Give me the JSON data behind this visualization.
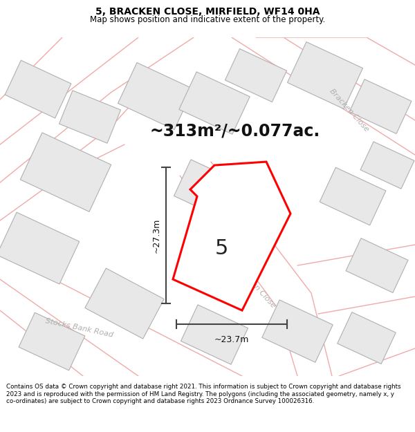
{
  "title": "5, BRACKEN CLOSE, MIRFIELD, WF14 0HA",
  "subtitle": "Map shows position and indicative extent of the property.",
  "area_text": "~313m²/~0.077ac.",
  "width_text": "~23.7m",
  "height_text": "~27.3m",
  "number_label": "5",
  "footer_text": "Contains OS data © Crown copyright and database right 2021. This information is subject to Crown copyright and database rights 2023 and is reproduced with the permission of HM Land Registry. The polygons (including the associated geometry, namely x, y co-ordinates) are subject to Crown copyright and database rights 2023 Ordnance Survey 100026316.",
  "bg_color": "#ffffff",
  "map_bg": "#ffffff",
  "building_fill": "#e8e8e8",
  "building_edge": "#b0b0b0",
  "road_line_color": "#f0aaaa",
  "highlight_color": "#ff0000",
  "dim_line_color": "#444444",
  "road_label_color": "#b0b0b0",
  "title_fontsize": 10,
  "subtitle_fontsize": 8.5,
  "area_fontsize": 17,
  "dim_fontsize": 9,
  "number_fontsize": 22,
  "road_label_fontsize": 8
}
